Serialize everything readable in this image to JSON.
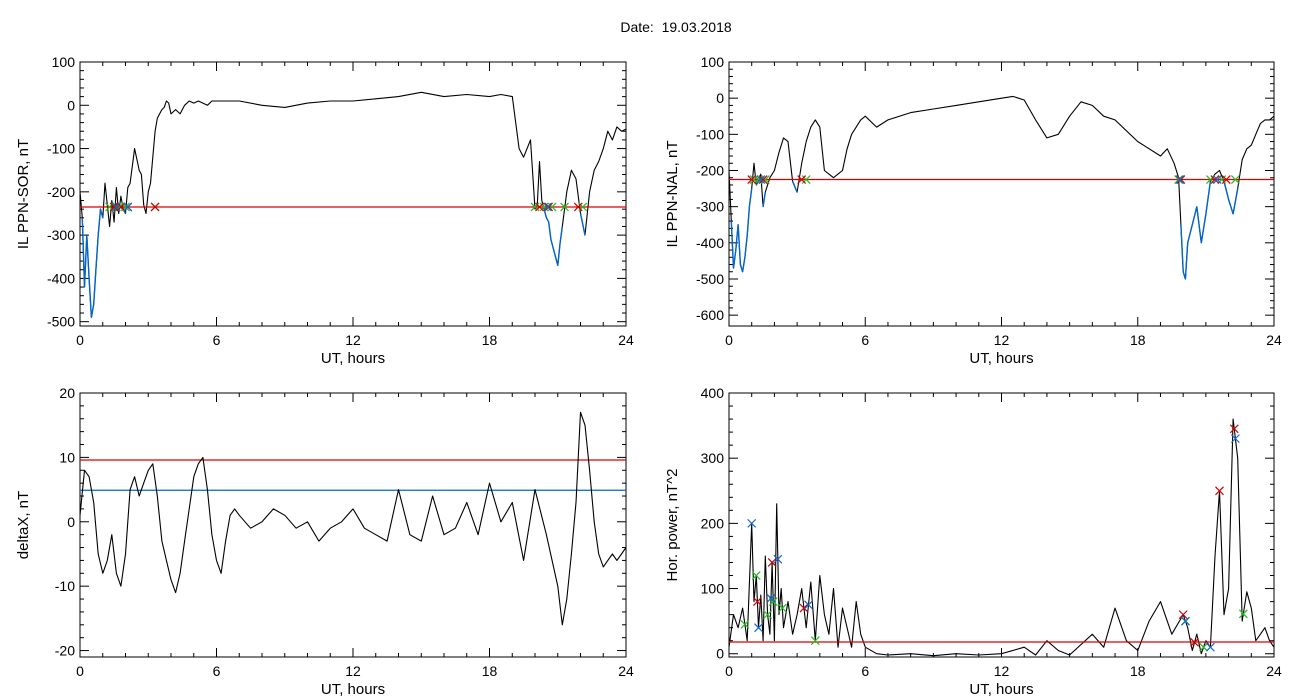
{
  "date_title": "Date:  19.03.2018",
  "colors": {
    "signal": "#000000",
    "threshold_red": "#dd0000",
    "threshold_blue": "#0066cc",
    "marker_green": "#22bb22",
    "marker_red": "#cc0000",
    "marker_blue": "#1166cc"
  },
  "chart_data": [
    {
      "type": "line",
      "ylabel": "IL PPN-SOR, nT",
      "xlabel": "UT, hours",
      "xlim": [
        0,
        24
      ],
      "ylim": [
        -510,
        100
      ],
      "xticks": [
        "0",
        "6",
        "12",
        "18",
        "24"
      ],
      "yticks": [
        "100",
        "0",
        "-100",
        "-200",
        "-300",
        "-400",
        "-500"
      ],
      "threshold": -235,
      "series": [
        {
          "x": [
            0,
            0.1,
            0.2,
            0.3,
            0.4,
            0.5,
            0.6,
            0.7,
            0.8,
            0.9,
            1.0,
            1.1,
            1.2,
            1.3,
            1.4,
            1.5,
            1.6,
            1.7,
            1.8,
            1.9,
            2.0,
            2.1,
            2.2,
            2.4,
            2.6,
            2.7,
            2.8,
            2.9,
            3.0,
            3.1,
            3.2,
            3.3,
            3.4,
            3.5,
            3.6,
            3.7,
            3.8,
            3.9,
            4.0,
            4.2,
            4.4,
            4.6,
            4.8,
            5.0,
            5.2,
            5.4,
            5.6,
            5.8,
            6.0,
            7,
            8,
            9,
            10,
            11,
            12,
            13,
            14,
            15,
            16,
            17,
            18,
            18.5,
            19.0,
            19.3,
            19.5,
            19.8,
            20.0,
            20.1,
            20.2,
            20.3,
            20.4,
            20.5,
            20.6,
            20.7,
            20.8,
            20.9,
            21.0,
            21.1,
            21.2,
            21.4,
            21.6,
            21.8,
            22.0,
            22.2,
            22.4,
            22.6,
            22.8,
            23.0,
            23.2,
            23.4,
            23.6,
            23.8,
            24.0
          ],
          "values": [
            -200,
            -260,
            -420,
            -300,
            -400,
            -490,
            -460,
            -380,
            -300,
            -240,
            -260,
            -180,
            -230,
            -280,
            -220,
            -270,
            -190,
            -250,
            -210,
            -240,
            -250,
            -190,
            -180,
            -100,
            -150,
            -160,
            -230,
            -250,
            -200,
            -180,
            -120,
            -60,
            -30,
            -20,
            -10,
            -5,
            10,
            5,
            -20,
            -10,
            -20,
            0,
            10,
            5,
            10,
            5,
            0,
            10,
            10,
            10,
            0,
            -5,
            5,
            10,
            10,
            15,
            20,
            30,
            20,
            25,
            20,
            25,
            20,
            -100,
            -120,
            -80,
            -240,
            -230,
            -130,
            -220,
            -240,
            -260,
            -270,
            -310,
            -330,
            -350,
            -370,
            -320,
            -280,
            -200,
            -150,
            -170,
            -250,
            -300,
            -200,
            -150,
            -130,
            -100,
            -60,
            -80,
            -50,
            -60,
            -55
          ]
        }
      ],
      "markers": [
        {
          "color": "green",
          "x": [
            1.3,
            1.55,
            1.75,
            2.0,
            3.3,
            20.0,
            20.4,
            20.75,
            21.3,
            22.1
          ]
        },
        {
          "color": "red",
          "x": [
            1.5,
            1.8,
            2.1,
            3.3,
            20.2,
            20.6,
            21.9
          ]
        },
        {
          "color": "blue",
          "x": [
            1.6,
            2.1,
            20.55
          ]
        }
      ]
    },
    {
      "type": "line",
      "ylabel": "IL PPN-NAL, nT",
      "xlabel": "UT, hours",
      "xlim": [
        0,
        24
      ],
      "ylim": [
        -630,
        100
      ],
      "xticks": [
        "0",
        "6",
        "12",
        "18",
        "24"
      ],
      "yticks": [
        "100",
        "0",
        "-100",
        "-200",
        "-300",
        "-400",
        "-500",
        "-600"
      ],
      "threshold": -225,
      "series": [
        {
          "x": [
            0,
            0.1,
            0.2,
            0.3,
            0.4,
            0.5,
            0.6,
            0.7,
            0.8,
            0.9,
            1.0,
            1.1,
            1.2,
            1.3,
            1.4,
            1.5,
            1.6,
            1.8,
            2.0,
            2.2,
            2.4,
            2.6,
            2.8,
            3.0,
            3.2,
            3.4,
            3.6,
            3.8,
            4.0,
            4.2,
            4.4,
            4.6,
            4.8,
            5.0,
            5.2,
            5.4,
            5.6,
            5.8,
            6.0,
            6.5,
            7,
            8,
            9,
            10,
            11,
            12,
            12.5,
            13,
            13.5,
            14,
            14.5,
            15,
            15.5,
            16,
            16.5,
            17,
            18,
            19.0,
            19.3,
            19.6,
            19.8,
            19.9,
            20.0,
            20.1,
            20.2,
            20.4,
            20.6,
            20.8,
            21.0,
            21.2,
            21.4,
            21.6,
            21.8,
            22.0,
            22.2,
            22.4,
            22.6,
            22.8,
            23.0,
            23.2,
            23.4,
            23.6,
            23.8,
            24.0
          ],
          "values": [
            -200,
            -340,
            -470,
            -420,
            -350,
            -460,
            -480,
            -440,
            -380,
            -300,
            -250,
            -180,
            -240,
            -230,
            -210,
            -300,
            -260,
            -220,
            -200,
            -150,
            -110,
            -120,
            -230,
            -260,
            -180,
            -120,
            -80,
            -60,
            -80,
            -200,
            -210,
            -220,
            -210,
            -200,
            -140,
            -100,
            -80,
            -60,
            -50,
            -80,
            -60,
            -40,
            -30,
            -20,
            -10,
            0,
            5,
            -5,
            -60,
            -110,
            -100,
            -50,
            -10,
            -20,
            -50,
            -60,
            -120,
            -160,
            -140,
            -180,
            -220,
            -350,
            -480,
            -500,
            -400,
            -350,
            -300,
            -400,
            -320,
            -230,
            -210,
            -200,
            -230,
            -280,
            -320,
            -250,
            -170,
            -140,
            -130,
            -100,
            -70,
            -60,
            -60,
            -50
          ]
        }
      ],
      "markers": [
        {
          "color": "green",
          "x": [
            1.1,
            1.3,
            1.6,
            3.4,
            19.8,
            21.2,
            21.7,
            22.3
          ]
        },
        {
          "color": "red",
          "x": [
            1.0,
            1.5,
            3.2,
            19.9,
            21.4,
            21.9
          ]
        },
        {
          "color": "blue",
          "x": [
            1.4,
            19.85,
            21.5
          ]
        }
      ]
    },
    {
      "type": "line",
      "ylabel": "deltaX, nT",
      "xlabel": "UT, hours",
      "xlim": [
        0,
        24
      ],
      "ylim": [
        -21,
        20
      ],
      "xticks": [
        "0",
        "6",
        "12",
        "18",
        "24"
      ],
      "yticks": [
        "20",
        "10",
        "0",
        "-10",
        "-20"
      ],
      "thresholds": {
        "red": 9.6,
        "blue": 4.9
      },
      "series": [
        {
          "x": [
            0,
            0.2,
            0.4,
            0.6,
            0.8,
            1.0,
            1.2,
            1.4,
            1.6,
            1.8,
            2.0,
            2.2,
            2.4,
            2.6,
            2.8,
            3.0,
            3.2,
            3.4,
            3.6,
            3.8,
            4.0,
            4.2,
            4.4,
            4.6,
            4.8,
            5.0,
            5.2,
            5.4,
            5.6,
            5.8,
            6.0,
            6.2,
            6.4,
            6.6,
            6.8,
            7.0,
            7.5,
            8.0,
            8.5,
            9.0,
            9.5,
            10.0,
            10.5,
            11.0,
            11.5,
            12.0,
            12.5,
            13.0,
            13.5,
            14.0,
            14.5,
            15.0,
            15.5,
            16.0,
            16.5,
            17.0,
            17.5,
            18.0,
            18.5,
            19.0,
            19.5,
            20.0,
            20.5,
            21.0,
            21.2,
            21.4,
            21.6,
            21.8,
            22.0,
            22.2,
            22.4,
            22.6,
            22.8,
            23.0,
            23.2,
            23.4,
            23.6,
            23.8,
            24.0
          ],
          "values": [
            1,
            8,
            7,
            3,
            -5,
            -8,
            -6,
            -2,
            -8,
            -10,
            -5,
            5,
            7,
            4,
            6,
            8,
            9,
            4,
            -3,
            -6,
            -9,
            -11,
            -8,
            -3,
            2,
            7,
            9,
            10,
            5,
            -2,
            -6,
            -8,
            -3,
            1,
            2,
            1,
            -1,
            0,
            2,
            1,
            -1,
            0,
            -3,
            -1,
            0,
            2,
            -1,
            -2,
            -3,
            5,
            -2,
            -3,
            4,
            -2,
            -1,
            3,
            -2,
            6,
            0,
            3,
            -6,
            5,
            -2,
            -10,
            -16,
            -12,
            -5,
            3,
            17,
            15,
            8,
            0,
            -5,
            -7,
            -6,
            -5,
            -6,
            -5,
            -4
          ]
        }
      ]
    },
    {
      "type": "line",
      "ylabel": "Hor. power, nT^2",
      "xlabel": "UT, hours",
      "xlim": [
        0,
        24
      ],
      "ylim": [
        -5,
        400
      ],
      "xticks": [
        "0",
        "6",
        "12",
        "18",
        "24"
      ],
      "yticks": [
        "400",
        "300",
        "200",
        "100",
        "0"
      ],
      "threshold": 18,
      "series": [
        {
          "x": [
            0,
            0.2,
            0.4,
            0.6,
            0.8,
            1.0,
            1.1,
            1.2,
            1.3,
            1.4,
            1.5,
            1.6,
            1.7,
            1.8,
            1.9,
            2.0,
            2.1,
            2.2,
            2.3,
            2.4,
            2.6,
            2.8,
            3.0,
            3.2,
            3.4,
            3.6,
            3.8,
            4.0,
            4.2,
            4.4,
            4.6,
            4.8,
            5.0,
            5.2,
            5.4,
            5.6,
            5.8,
            6.0,
            6.5,
            7,
            8,
            9,
            10,
            11,
            12,
            13,
            13.5,
            14,
            14.5,
            15,
            16,
            16.5,
            17,
            17.5,
            18,
            18.5,
            19,
            19.5,
            20.0,
            20.2,
            20.4,
            20.6,
            20.8,
            21.0,
            21.2,
            21.4,
            21.6,
            21.8,
            22.0,
            22.2,
            22.4,
            22.6,
            22.8,
            23.0,
            23.2,
            23.4,
            23.6,
            23.8,
            24.0
          ],
          "values": [
            10,
            60,
            40,
            70,
            20,
            200,
            80,
            120,
            40,
            90,
            20,
            150,
            60,
            30,
            140,
            20,
            230,
            60,
            100,
            40,
            80,
            30,
            60,
            100,
            40,
            110,
            20,
            120,
            60,
            30,
            100,
            10,
            70,
            40,
            10,
            80,
            30,
            10,
            0,
            -2,
            0,
            -3,
            0,
            -2,
            0,
            10,
            -2,
            20,
            5,
            -2,
            30,
            10,
            70,
            20,
            5,
            50,
            80,
            30,
            60,
            40,
            5,
            30,
            0,
            20,
            10,
            150,
            250,
            60,
            100,
            360,
            300,
            50,
            95,
            70,
            20,
            30,
            40,
            20,
            10
          ]
        }
      ],
      "markers": [
        {
          "color": "green",
          "x": [
            0.7,
            1.2,
            1.7,
            1.95,
            2.35,
            3.8,
            20.1,
            20.9,
            22.65
          ]
        },
        {
          "color": "red",
          "x": [
            1.25,
            1.9,
            3.3,
            20.0,
            20.5,
            21.6,
            22.25
          ]
        },
        {
          "color": "blue",
          "x": [
            1.0,
            1.3,
            1.85,
            2.15,
            3.5,
            20.1,
            21.2,
            22.3
          ]
        }
      ]
    }
  ]
}
